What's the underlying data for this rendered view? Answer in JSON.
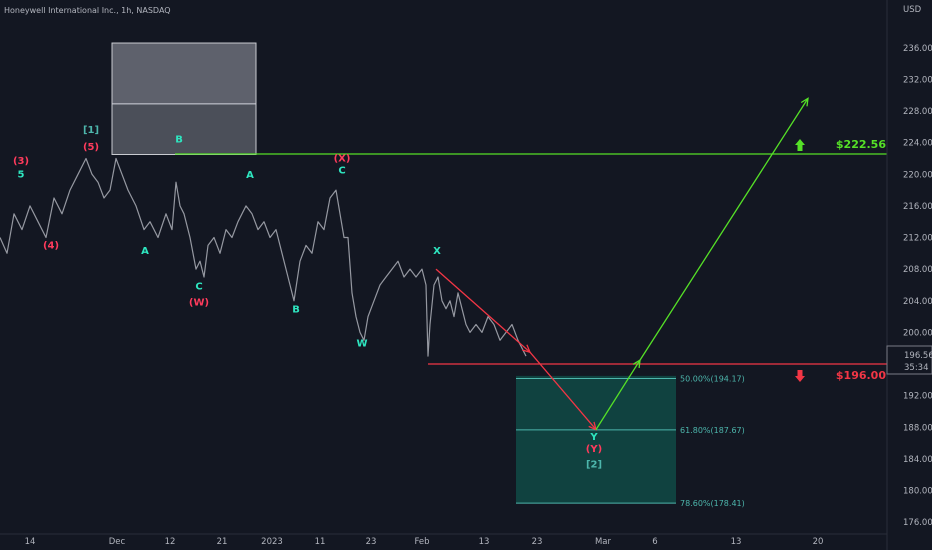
{
  "header": {
    "title": "Honeywell International Inc., 1h, NASDAQ",
    "currency": "USD"
  },
  "price_badge": {
    "price": "196.56",
    "countdown": "35:34"
  },
  "colors": {
    "background": "#131722",
    "price_line": "#787b86",
    "green": "#55e027",
    "red": "#f23645",
    "teal": "#4db6ac",
    "wave_green": "#2ee6c0",
    "wave_red": "#ff3b5c",
    "zone_fill": "#114a45"
  },
  "chart_data": {
    "type": "line",
    "title": "Honeywell International Inc., 1h, NASDAQ",
    "ylim": [
      174.5,
      238.5
    ],
    "y_ticks": [
      "236.00",
      "232.00",
      "228.00",
      "224.00",
      "220.00",
      "216.00",
      "212.00",
      "208.00",
      "204.00",
      "200.00",
      "196.00",
      "192.00",
      "188.00",
      "184.00",
      "180.00",
      "176.00"
    ],
    "x_ticks": [
      "14",
      "Dec",
      "12",
      "21",
      "2023",
      "11",
      "23",
      "Feb",
      "13",
      "23",
      "Mar",
      "6",
      "13",
      "20"
    ],
    "price_series": [
      [
        0,
        212
      ],
      [
        7,
        210
      ],
      [
        14,
        215
      ],
      [
        22,
        213
      ],
      [
        30,
        216
      ],
      [
        38,
        214
      ],
      [
        46,
        212
      ],
      [
        54,
        217
      ],
      [
        62,
        215
      ],
      [
        70,
        218
      ],
      [
        78,
        220
      ],
      [
        86,
        222
      ],
      [
        92,
        220
      ],
      [
        98,
        219
      ],
      [
        104,
        217
      ],
      [
        110,
        218
      ],
      [
        116,
        222
      ],
      [
        122,
        220
      ],
      [
        128,
        218
      ],
      [
        136,
        216
      ],
      [
        144,
        213
      ],
      [
        150,
        214
      ],
      [
        158,
        212
      ],
      [
        166,
        215
      ],
      [
        172,
        213
      ],
      [
        176,
        219
      ],
      [
        180,
        216
      ],
      [
        184,
        215
      ],
      [
        190,
        212
      ],
      [
        196,
        208
      ],
      [
        200,
        209
      ],
      [
        204,
        207
      ],
      [
        208,
        211
      ],
      [
        214,
        212
      ],
      [
        220,
        210
      ],
      [
        226,
        213
      ],
      [
        232,
        212
      ],
      [
        238,
        214
      ],
      [
        246,
        216
      ],
      [
        252,
        215
      ],
      [
        258,
        213
      ],
      [
        264,
        214
      ],
      [
        270,
        212
      ],
      [
        276,
        213
      ],
      [
        282,
        210
      ],
      [
        288,
        207
      ],
      [
        294,
        204
      ],
      [
        300,
        209
      ],
      [
        306,
        211
      ],
      [
        312,
        210
      ],
      [
        318,
        214
      ],
      [
        324,
        213
      ],
      [
        330,
        217
      ],
      [
        336,
        218
      ],
      [
        340,
        215
      ],
      [
        344,
        212
      ],
      [
        348,
        212
      ],
      [
        352,
        205
      ],
      [
        356,
        202
      ],
      [
        360,
        200
      ],
      [
        364,
        199
      ],
      [
        368,
        202
      ],
      [
        374,
        204
      ],
      [
        380,
        206
      ],
      [
        386,
        207
      ],
      [
        392,
        208
      ],
      [
        398,
        209
      ],
      [
        404,
        207
      ],
      [
        410,
        208
      ],
      [
        416,
        207
      ],
      [
        422,
        208
      ],
      [
        426,
        206
      ],
      [
        428,
        197
      ],
      [
        430,
        201
      ],
      [
        434,
        206
      ],
      [
        438,
        207
      ],
      [
        442,
        204
      ],
      [
        446,
        203
      ],
      [
        450,
        204
      ],
      [
        454,
        202
      ],
      [
        458,
        205
      ],
      [
        462,
        203
      ],
      [
        466,
        201
      ],
      [
        470,
        200
      ],
      [
        476,
        201
      ],
      [
        482,
        200
      ],
      [
        488,
        202
      ],
      [
        494,
        201
      ],
      [
        500,
        199
      ],
      [
        506,
        200
      ],
      [
        512,
        201
      ],
      [
        518,
        199
      ],
      [
        522,
        198
      ],
      [
        526,
        197
      ]
    ],
    "projection_red": [
      [
        436,
        208
      ],
      [
        530,
        197.5
      ],
      [
        596,
        187.7
      ]
    ],
    "projection_green": [
      [
        596,
        187.7
      ],
      [
        640,
        196.5
      ],
      [
        808,
        229.6
      ]
    ],
    "levels": [
      {
        "name": "resistance",
        "value": 222.56,
        "label": "$222.56",
        "x_start": 175
      },
      {
        "name": "support",
        "value": 196.0,
        "label": "$196.00",
        "x_start": 428
      }
    ],
    "fib_levels": [
      {
        "label": "50.00%(194.17)",
        "value": 194.17
      },
      {
        "label": "61.80%(187.67)",
        "value": 187.67
      },
      {
        "label": "78.60%(178.41)",
        "value": 178.41
      }
    ],
    "wave_labels": [
      {
        "text": "5",
        "x": 21,
        "y": 219.6,
        "color": "green"
      },
      {
        "text": "(3)",
        "x": 21,
        "y": 221.3,
        "color": "red"
      },
      {
        "text": "(4)",
        "x": 51,
        "y": 210.6,
        "color": "red"
      },
      {
        "text": "[1]",
        "x": 91,
        "y": 225.2,
        "color": "teal"
      },
      {
        "text": "(5)",
        "x": 91,
        "y": 223.1,
        "color": "red"
      },
      {
        "text": "A",
        "x": 145,
        "y": 209.9,
        "color": "green"
      },
      {
        "text": "B",
        "x": 179,
        "y": 224.0,
        "color": "green"
      },
      {
        "text": "C",
        "x": 199,
        "y": 205.4,
        "color": "green"
      },
      {
        "text": "(W)",
        "x": 199,
        "y": 203.4,
        "color": "red"
      },
      {
        "text": "A",
        "x": 250,
        "y": 219.5,
        "color": "green"
      },
      {
        "text": "B",
        "x": 296,
        "y": 202.5,
        "color": "green"
      },
      {
        "text": "(X)",
        "x": 342,
        "y": 221.6,
        "color": "red"
      },
      {
        "text": "C",
        "x": 342,
        "y": 220.1,
        "color": "green"
      },
      {
        "text": "W",
        "x": 362,
        "y": 198.2,
        "color": "green"
      },
      {
        "text": "X",
        "x": 437,
        "y": 209.9,
        "color": "green"
      },
      {
        "text": "Y",
        "x": 594,
        "y": 186.4,
        "color": "green"
      },
      {
        "text": "(Y)",
        "x": 594,
        "y": 184.9,
        "color": "red"
      },
      {
        "text": "[2]",
        "x": 594,
        "y": 182.9,
        "color": "teal"
      }
    ],
    "boxes": [
      {
        "name": "gray-zone",
        "x1": 112,
        "x2": 256,
        "y1": 236.6,
        "y2": 222.5
      },
      {
        "name": "fib-zone",
        "x1": 516,
        "x2": 676,
        "y1": 194.5,
        "y2": 178.4
      }
    ],
    "arrows": [
      {
        "name": "up",
        "x": 800,
        "value": 222.56,
        "color": "green"
      },
      {
        "name": "down",
        "x": 800,
        "value": 196.0,
        "color": "red"
      }
    ]
  }
}
